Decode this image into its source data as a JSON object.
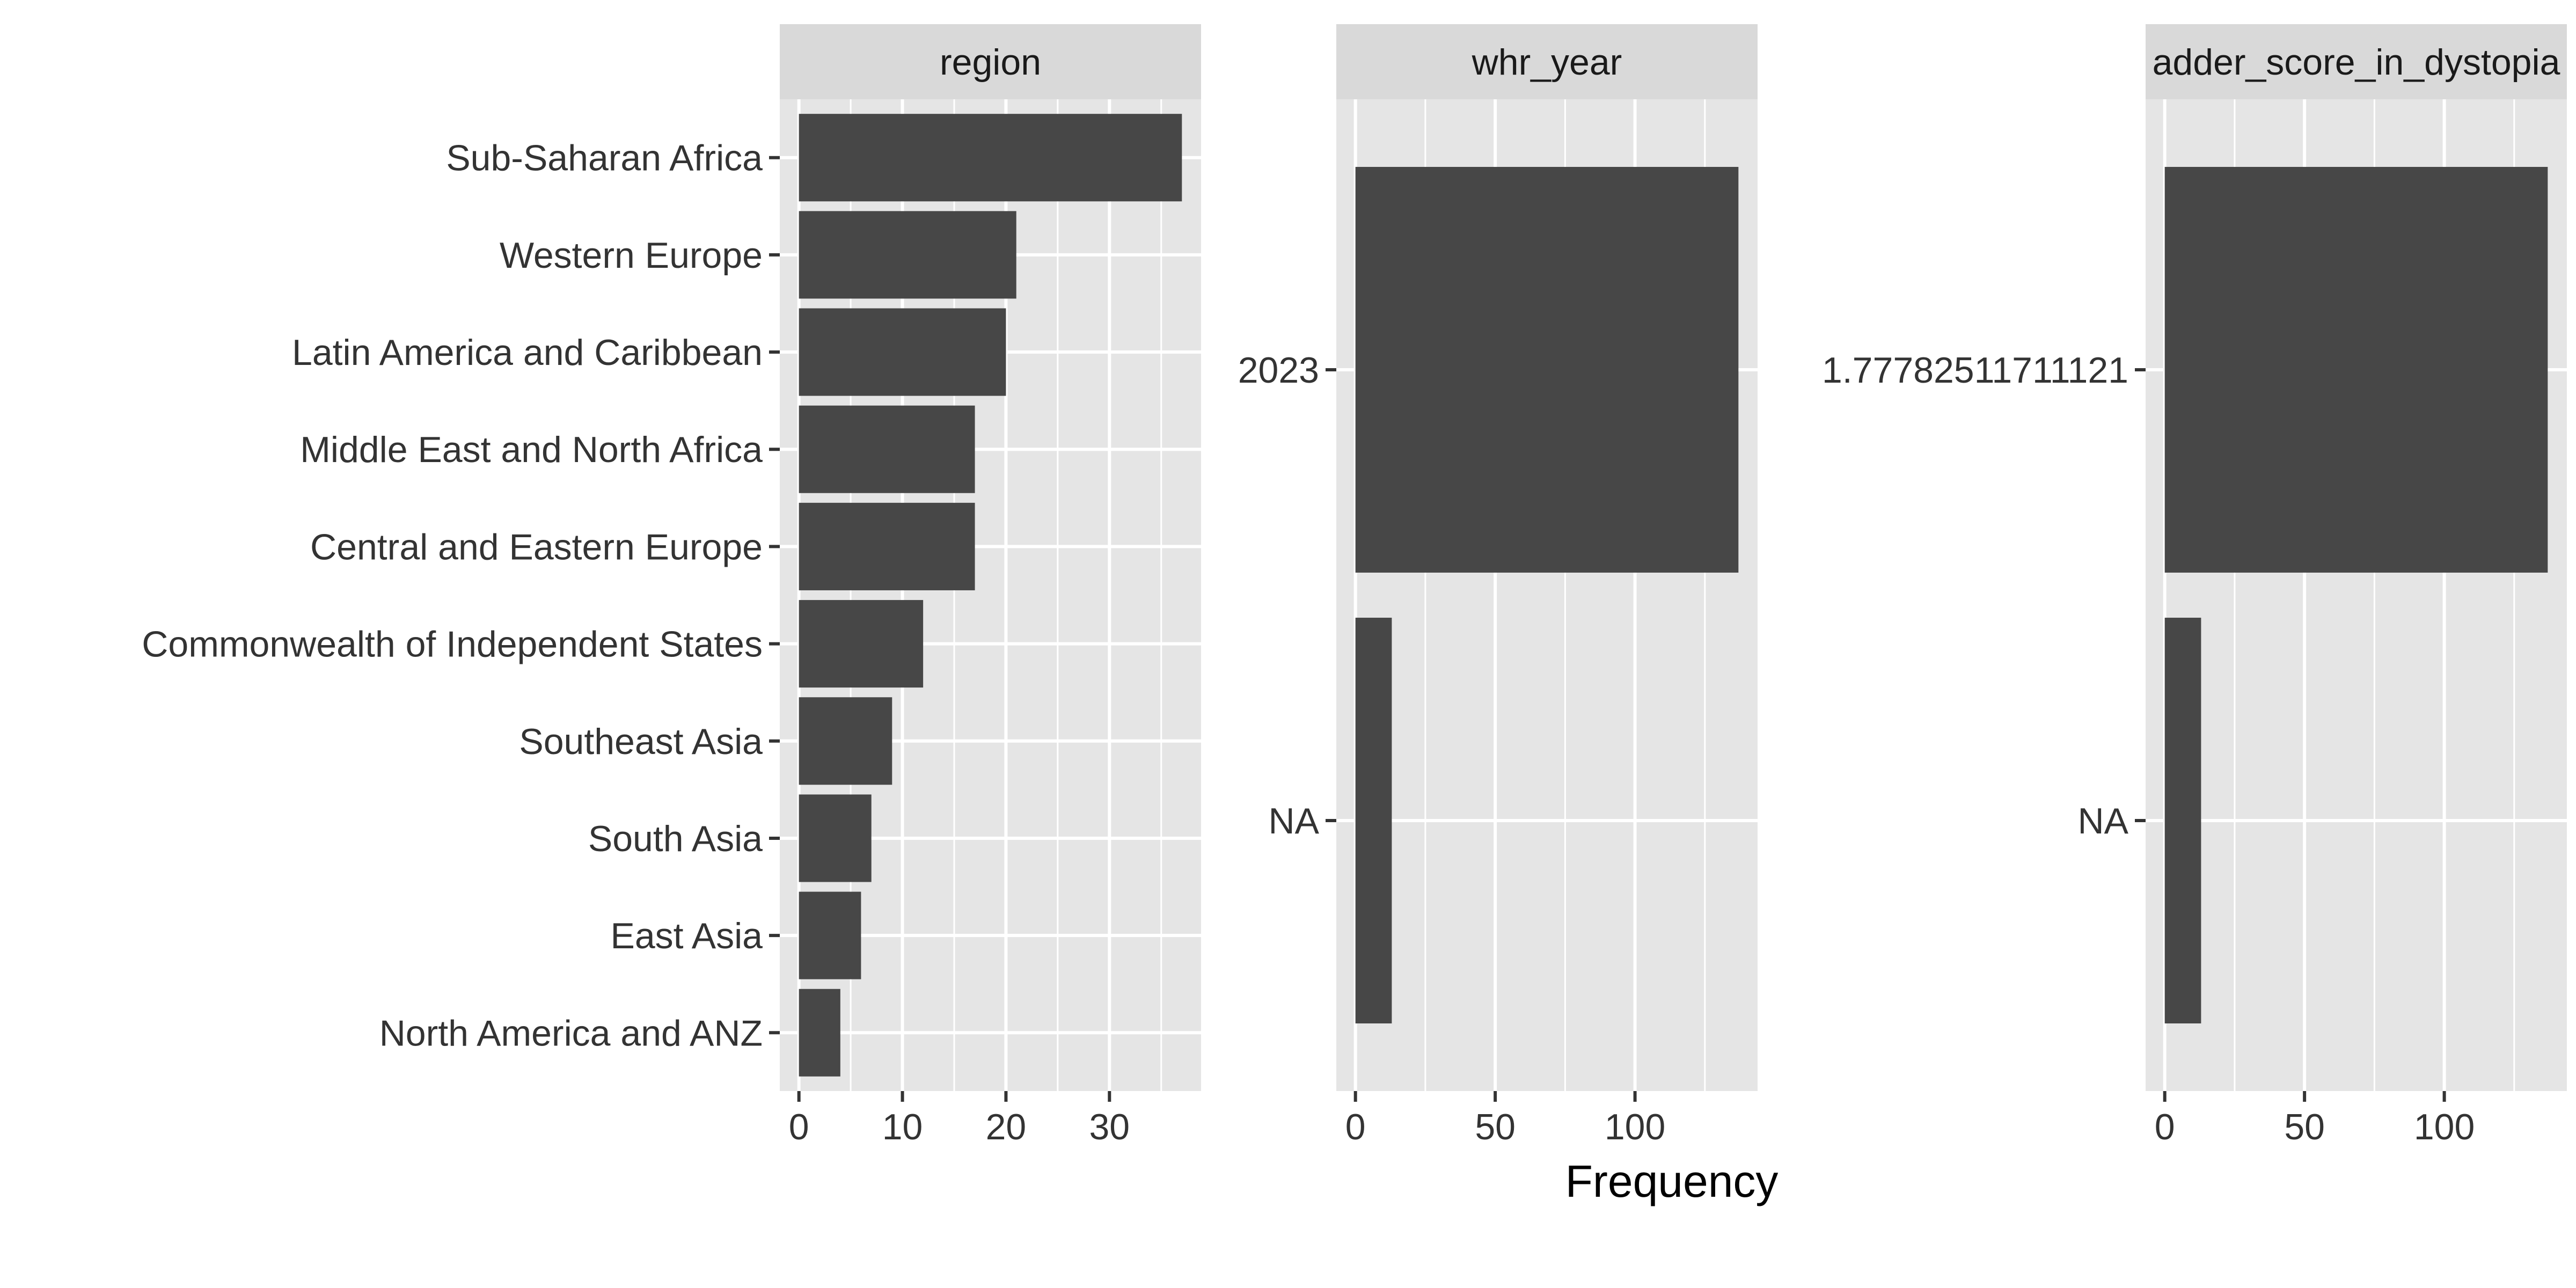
{
  "figure": {
    "xlabel": "Frequency",
    "colors": {
      "panel_bg": "#e5e5e5",
      "strip_bg": "#d9d9d9",
      "bar": "#474747",
      "grid": "#ffffff",
      "text": "#333333",
      "title_text": "#1a1a1a"
    }
  },
  "chart_data": [
    {
      "type": "bar",
      "orientation": "horizontal",
      "facet": "region",
      "categories": [
        "Sub-Saharan Africa",
        "Western Europe",
        "Latin America and Caribbean",
        "Middle East and North Africa",
        "Central and Eastern Europe",
        "Commonwealth of Independent States",
        "Southeast Asia",
        "South Asia",
        "East Asia",
        "North America and ANZ"
      ],
      "values": [
        37,
        21,
        20,
        17,
        17,
        12,
        9,
        7,
        6,
        4
      ],
      "xlim": [
        -1.85,
        38.85
      ],
      "xticks": [
        0,
        10,
        20,
        30
      ],
      "xgrid_minor": [
        5,
        15,
        25,
        35
      ],
      "grid": true
    },
    {
      "type": "bar",
      "orientation": "horizontal",
      "facet": "whr_year",
      "categories": [
        "2023",
        "NA"
      ],
      "values": [
        137,
        13
      ],
      "xlim": [
        -6.85,
        143.85
      ],
      "xticks": [
        0,
        50,
        100
      ],
      "xgrid_minor": [
        25,
        75,
        125
      ],
      "grid": true
    },
    {
      "type": "bar",
      "orientation": "horizontal",
      "facet": "ladder_score_in_dystopia",
      "facet_label_visible": "adder_score_in_dystopia",
      "categories": [
        "1.77782511711121",
        "NA"
      ],
      "values": [
        137,
        13
      ],
      "xlim": [
        -6.85,
        143.85
      ],
      "xticks": [
        0,
        50,
        100
      ],
      "xgrid_minor": [
        25,
        75,
        125
      ],
      "grid": true
    }
  ]
}
